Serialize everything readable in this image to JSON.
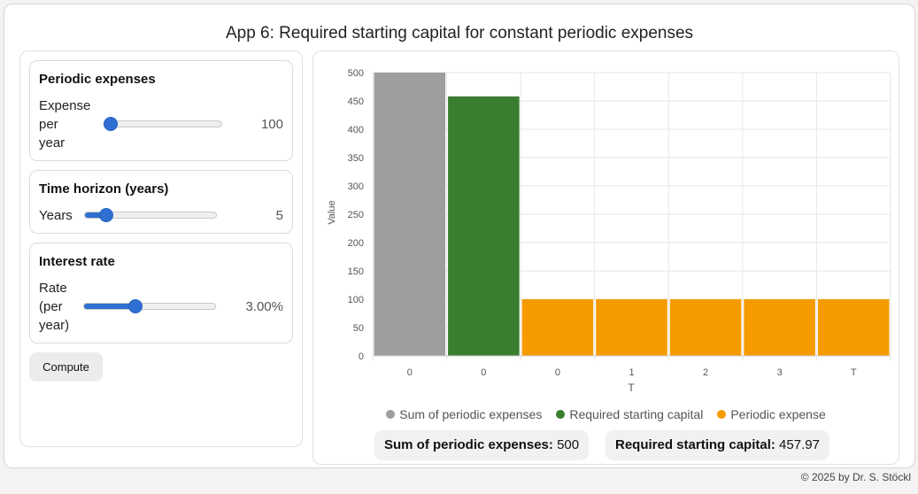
{
  "app": {
    "title": "App 6: Required starting capital for constant periodic expenses"
  },
  "controls": {
    "periodic_expenses": {
      "title": "Periodic expenses",
      "label_lines": [
        "Expense",
        "per",
        "year"
      ],
      "value": "100",
      "slider_fraction": 0.0
    },
    "time_horizon": {
      "title": "Time horizon (years)",
      "label": "Years",
      "value": "5",
      "slider_fraction": 0.13
    },
    "interest_rate": {
      "title": "Interest rate",
      "label_lines": [
        "Rate",
        "(per",
        "year)"
      ],
      "value": "3.00%",
      "slider_fraction": 0.39
    },
    "compute_label": "Compute"
  },
  "chart_data": {
    "type": "bar",
    "categories": [
      "0",
      "0",
      "0",
      "1",
      "2",
      "3",
      "T"
    ],
    "values": [
      500,
      457.97,
      100,
      100,
      100,
      100,
      100
    ],
    "bar_series": [
      "Sum of periodic expenses",
      "Required starting capital",
      "Periodic expense",
      "Periodic expense",
      "Periodic expense",
      "Periodic expense",
      "Periodic expense"
    ],
    "series_colors": {
      "Sum of periodic expenses": "#9e9e9e",
      "Required starting capital": "#3a7d2f",
      "Periodic expense": "#f59b00"
    },
    "xlabel": "T",
    "ylabel": "Value",
    "ylim": [
      0,
      500
    ],
    "yticks": [
      0,
      50,
      100,
      150,
      200,
      250,
      300,
      350,
      400,
      450,
      500
    ],
    "grid": true,
    "legend": {
      "position": "bottom",
      "entries": [
        "Sum of periodic expenses",
        "Required starting capital",
        "Periodic expense"
      ]
    }
  },
  "summary": {
    "sum_label": "Sum of periodic expenses:",
    "sum_value": "500",
    "capital_label": "Required starting capital:",
    "capital_value": "457.97"
  },
  "footer": {
    "text": "© 2025 by Dr. S. Stöckl"
  }
}
